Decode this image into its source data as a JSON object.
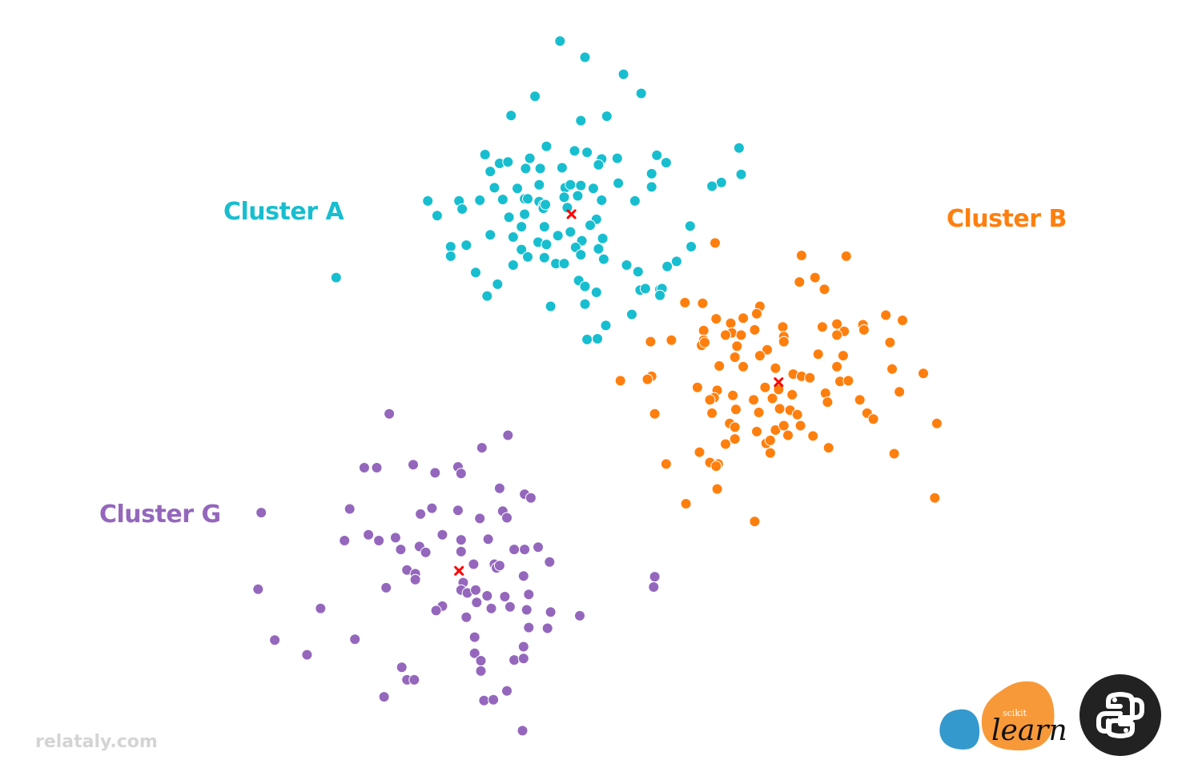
{
  "chart_data": {
    "type": "scatter",
    "title": "",
    "xlabel": "",
    "ylabel": "",
    "xlim": [
      0,
      100
    ],
    "ylim": [
      0,
      100
    ],
    "grid": false,
    "axes_visible": false,
    "centroid_marker": "x",
    "centroid_color": "#ff0000",
    "series": [
      {
        "name": "Cluster A",
        "color": "#17becf",
        "centroid": [
          47.2,
          73.1
        ],
        "points": [
          [
            46.1,
            96.6
          ],
          [
            48.5,
            94.4
          ],
          [
            52.2,
            92.1
          ],
          [
            53.9,
            89.5
          ],
          [
            43.7,
            89.1
          ],
          [
            41.4,
            86.5
          ],
          [
            48.1,
            85.8
          ],
          [
            50.6,
            86.4
          ],
          [
            63.3,
            82.1
          ],
          [
            38.9,
            81.2
          ],
          [
            40.3,
            80.0
          ],
          [
            41.1,
            80.2
          ],
          [
            43.2,
            80.7
          ],
          [
            44.8,
            82.3
          ],
          [
            47.5,
            81.7
          ],
          [
            48.7,
            81.5
          ],
          [
            50.1,
            80.6
          ],
          [
            51.6,
            80.7
          ],
          [
            55.4,
            81.1
          ],
          [
            56.3,
            80.1
          ],
          [
            39.4,
            78.9
          ],
          [
            42.8,
            79.3
          ],
          [
            44.2,
            79.3
          ],
          [
            46.3,
            79.4
          ],
          [
            49.8,
            79.8
          ],
          [
            54.9,
            78.6
          ],
          [
            63.5,
            78.5
          ],
          [
            61.6,
            77.4
          ],
          [
            60.7,
            76.9
          ],
          [
            39.8,
            76.7
          ],
          [
            42.0,
            76.6
          ],
          [
            44.1,
            77.1
          ],
          [
            46.6,
            76.7
          ],
          [
            47.1,
            77.1
          ],
          [
            48.1,
            77.0
          ],
          [
            49.3,
            76.6
          ],
          [
            51.7,
            77.3
          ],
          [
            54.9,
            76.8
          ],
          [
            33.4,
            74.9
          ],
          [
            36.4,
            74.9
          ],
          [
            38.4,
            75.0
          ],
          [
            40.6,
            75.1
          ],
          [
            42.7,
            75.2
          ],
          [
            43.0,
            75.2
          ],
          [
            44.1,
            74.8
          ],
          [
            44.5,
            74.3
          ],
          [
            46.5,
            75.4
          ],
          [
            47.8,
            75.6
          ],
          [
            50.1,
            75.0
          ],
          [
            53.3,
            74.9
          ],
          [
            34.3,
            72.9
          ],
          [
            36.7,
            73.8
          ],
          [
            41.2,
            72.7
          ],
          [
            42.7,
            73.1
          ],
          [
            44.5,
            73.9
          ],
          [
            44.7,
            74.4
          ],
          [
            46.8,
            74.0
          ],
          [
            49.6,
            72.4
          ],
          [
            42.4,
            71.4
          ],
          [
            44.6,
            71.4
          ],
          [
            47.1,
            70.7
          ],
          [
            49.0,
            71.6
          ],
          [
            58.6,
            71.5
          ],
          [
            39.4,
            70.3
          ],
          [
            41.6,
            70.0
          ],
          [
            44.0,
            69.3
          ],
          [
            45.9,
            70.2
          ],
          [
            48.2,
            69.5
          ],
          [
            50.2,
            69.8
          ],
          [
            35.6,
            68.7
          ],
          [
            37.1,
            68.9
          ],
          [
            42.4,
            68.3
          ],
          [
            44.8,
            69.0
          ],
          [
            47.6,
            68.6
          ],
          [
            49.8,
            68.4
          ],
          [
            58.7,
            68.7
          ],
          [
            35.6,
            67.4
          ],
          [
            43.0,
            67.3
          ],
          [
            44.6,
            67.2
          ],
          [
            48.1,
            67.6
          ],
          [
            50.3,
            67.0
          ],
          [
            57.3,
            66.7
          ],
          [
            45.7,
            66.4
          ],
          [
            46.5,
            66.4
          ],
          [
            41.6,
            66.2
          ],
          [
            38.0,
            65.2
          ],
          [
            52.5,
            66.2
          ],
          [
            56.4,
            66.0
          ],
          [
            24.6,
            64.5
          ],
          [
            47.9,
            64.1
          ],
          [
            53.6,
            65.3
          ],
          [
            40.1,
            63.6
          ],
          [
            48.5,
            63.3
          ],
          [
            49.6,
            62.5
          ],
          [
            53.8,
            62.8
          ],
          [
            55.7,
            62.9
          ],
          [
            39.1,
            62.0
          ],
          [
            54.3,
            63.0
          ],
          [
            55.9,
            63.0
          ],
          [
            55.7,
            62.1
          ],
          [
            48.5,
            60.9
          ],
          [
            45.2,
            60.6
          ],
          [
            53.0,
            59.5
          ],
          [
            50.5,
            58.0
          ],
          [
            48.7,
            56.1
          ],
          [
            49.7,
            56.2
          ]
        ]
      },
      {
        "name": "Cluster B",
        "color": "#ff7f0e",
        "centroid": [
          67.1,
          50.3
        ],
        "points": [
          [
            61.0,
            69.2
          ],
          [
            73.6,
            67.4
          ],
          [
            69.3,
            67.5
          ],
          [
            70.6,
            64.5
          ],
          [
            69.1,
            63.9
          ],
          [
            71.5,
            62.9
          ],
          [
            58.1,
            61.1
          ],
          [
            59.8,
            61.0
          ],
          [
            65.3,
            60.6
          ],
          [
            65.0,
            59.6
          ],
          [
            63.7,
            59.0
          ],
          [
            62.5,
            58.3
          ],
          [
            61.1,
            58.9
          ],
          [
            77.4,
            59.4
          ],
          [
            79.0,
            58.7
          ],
          [
            72.7,
            58.2
          ],
          [
            75.2,
            58.1
          ],
          [
            71.3,
            57.8
          ],
          [
            59.9,
            57.3
          ],
          [
            62.6,
            57.0
          ],
          [
            64.8,
            57.4
          ],
          [
            67.5,
            57.8
          ],
          [
            73.4,
            57.2
          ],
          [
            75.3,
            57.4
          ],
          [
            59.9,
            56.0
          ],
          [
            62.0,
            56.7
          ],
          [
            63.5,
            56.7
          ],
          [
            67.6,
            56.5
          ],
          [
            72.7,
            56.7
          ],
          [
            54.8,
            55.8
          ],
          [
            56.8,
            56.0
          ],
          [
            59.7,
            55.3
          ],
          [
            60.0,
            55.7
          ],
          [
            63.1,
            55.2
          ],
          [
            66.0,
            54.7
          ],
          [
            67.6,
            55.8
          ],
          [
            77.8,
            55.7
          ],
          [
            62.9,
            53.7
          ],
          [
            65.3,
            53.9
          ],
          [
            70.9,
            54.1
          ],
          [
            73.3,
            53.9
          ],
          [
            61.4,
            52.5
          ],
          [
            63.7,
            52.4
          ],
          [
            66.8,
            52.2
          ],
          [
            72.7,
            52.4
          ],
          [
            78.0,
            52.1
          ],
          [
            81.0,
            51.5
          ],
          [
            51.9,
            50.5
          ],
          [
            54.9,
            51.1
          ],
          [
            54.5,
            50.7
          ],
          [
            68.5,
            51.4
          ],
          [
            69.3,
            51.1
          ],
          [
            70.1,
            50.9
          ],
          [
            73.0,
            50.4
          ],
          [
            73.8,
            50.5
          ],
          [
            59.3,
            49.6
          ],
          [
            61.2,
            49.2
          ],
          [
            65.8,
            49.6
          ],
          [
            67.1,
            49.3
          ],
          [
            60.9,
            48.2
          ],
          [
            60.5,
            47.9
          ],
          [
            62.7,
            48.5
          ],
          [
            64.7,
            47.9
          ],
          [
            66.5,
            48.1
          ],
          [
            68.4,
            48.6
          ],
          [
            71.6,
            48.8
          ],
          [
            74.9,
            47.9
          ],
          [
            78.7,
            49.0
          ],
          [
            71.8,
            47.6
          ],
          [
            55.2,
            46.0
          ],
          [
            60.7,
            46.1
          ],
          [
            63.0,
            46.6
          ],
          [
            65.2,
            46.2
          ],
          [
            67.2,
            46.7
          ],
          [
            68.2,
            46.5
          ],
          [
            68.9,
            45.9
          ],
          [
            75.6,
            46.1
          ],
          [
            76.2,
            45.3
          ],
          [
            82.3,
            44.7
          ],
          [
            62.4,
            44.7
          ],
          [
            62.9,
            44.2
          ],
          [
            65.0,
            43.6
          ],
          [
            66.8,
            43.8
          ],
          [
            67.6,
            44.4
          ],
          [
            69.2,
            44.4
          ],
          [
            68.0,
            43.1
          ],
          [
            70.4,
            43.0
          ],
          [
            62.0,
            41.9
          ],
          [
            62.9,
            42.6
          ],
          [
            65.9,
            42.0
          ],
          [
            66.3,
            42.4
          ],
          [
            71.9,
            41.4
          ],
          [
            59.5,
            40.8
          ],
          [
            66.3,
            40.7
          ],
          [
            78.2,
            40.6
          ],
          [
            61.3,
            39.2
          ],
          [
            56.3,
            39.2
          ],
          [
            60.5,
            39.4
          ],
          [
            61.1,
            38.9
          ],
          [
            61.2,
            35.8
          ],
          [
            58.2,
            33.8
          ],
          [
            82.1,
            34.6
          ],
          [
            64.8,
            31.4
          ]
        ]
      },
      {
        "name": "Cluster G",
        "color": "#9467bd",
        "centroid": [
          36.4,
          24.7
        ],
        "points": [
          [
            29.7,
            46.0
          ],
          [
            41.1,
            43.1
          ],
          [
            38.6,
            41.4
          ],
          [
            27.3,
            38.7
          ],
          [
            28.5,
            38.7
          ],
          [
            32.0,
            39.1
          ],
          [
            34.1,
            38.0
          ],
          [
            36.3,
            38.8
          ],
          [
            36.6,
            37.9
          ],
          [
            40.3,
            35.9
          ],
          [
            42.7,
            35.1
          ],
          [
            43.3,
            34.6
          ],
          [
            25.9,
            33.1
          ],
          [
            33.8,
            33.2
          ],
          [
            36.3,
            32.9
          ],
          [
            40.6,
            32.8
          ],
          [
            17.4,
            32.6
          ],
          [
            32.7,
            32.4
          ],
          [
            38.4,
            31.8
          ],
          [
            41.0,
            31.9
          ],
          [
            34.8,
            29.6
          ],
          [
            36.6,
            28.9
          ],
          [
            39.2,
            29.0
          ],
          [
            25.4,
            28.8
          ],
          [
            27.7,
            29.6
          ],
          [
            28.7,
            28.8
          ],
          [
            30.3,
            29.2
          ],
          [
            30.8,
            27.6
          ],
          [
            32.6,
            28.0
          ],
          [
            33.2,
            27.2
          ],
          [
            36.6,
            27.3
          ],
          [
            41.7,
            27.6
          ],
          [
            42.7,
            27.6
          ],
          [
            44.0,
            27.9
          ],
          [
            45.1,
            25.9
          ],
          [
            31.4,
            24.8
          ],
          [
            32.2,
            24.3
          ],
          [
            37.8,
            25.6
          ],
          [
            39.8,
            25.6
          ],
          [
            40.0,
            25.1
          ],
          [
            40.3,
            25.4
          ],
          [
            42.6,
            24.0
          ],
          [
            55.2,
            23.9
          ],
          [
            32.2,
            23.5
          ],
          [
            36.8,
            23.1
          ],
          [
            17.1,
            22.2
          ],
          [
            29.4,
            22.4
          ],
          [
            36.6,
            22.1
          ],
          [
            37.2,
            21.7
          ],
          [
            38.0,
            22.1
          ],
          [
            39.1,
            21.3
          ],
          [
            40.8,
            21.2
          ],
          [
            43.1,
            21.5
          ],
          [
            55.1,
            22.5
          ],
          [
            38.1,
            20.4
          ],
          [
            42.9,
            19.4
          ],
          [
            23.1,
            19.6
          ],
          [
            34.8,
            19.9
          ],
          [
            34.2,
            19.3
          ],
          [
            39.5,
            19.6
          ],
          [
            41.3,
            19.8
          ],
          [
            37.1,
            18.4
          ],
          [
            45.2,
            19.1
          ],
          [
            48.0,
            18.6
          ],
          [
            43.1,
            17.0
          ],
          [
            44.9,
            16.9
          ],
          [
            18.7,
            15.3
          ],
          [
            26.4,
            15.4
          ],
          [
            37.9,
            15.7
          ],
          [
            42.6,
            14.4
          ],
          [
            21.8,
            13.3
          ],
          [
            37.9,
            13.5
          ],
          [
            38.5,
            12.5
          ],
          [
            41.7,
            12.6
          ],
          [
            42.6,
            12.8
          ],
          [
            30.9,
            11.6
          ],
          [
            38.5,
            11.1
          ],
          [
            31.4,
            9.9
          ],
          [
            32.1,
            9.9
          ],
          [
            41.0,
            8.4
          ],
          [
            29.2,
            7.6
          ],
          [
            38.8,
            7.1
          ],
          [
            39.7,
            7.2
          ],
          [
            42.5,
            3.0
          ]
        ]
      }
    ]
  },
  "labels": {
    "cluster_a": "Cluster A",
    "cluster_b": "Cluster B",
    "cluster_c": "Cluster G"
  },
  "watermark": "relataly.com",
  "logos": {
    "sklearn_small": "scikit",
    "sklearn_main": "learn",
    "sklearn_blue": "#3499cd",
    "sklearn_orange": "#f89939",
    "python_icon": "python-logo-icon"
  }
}
